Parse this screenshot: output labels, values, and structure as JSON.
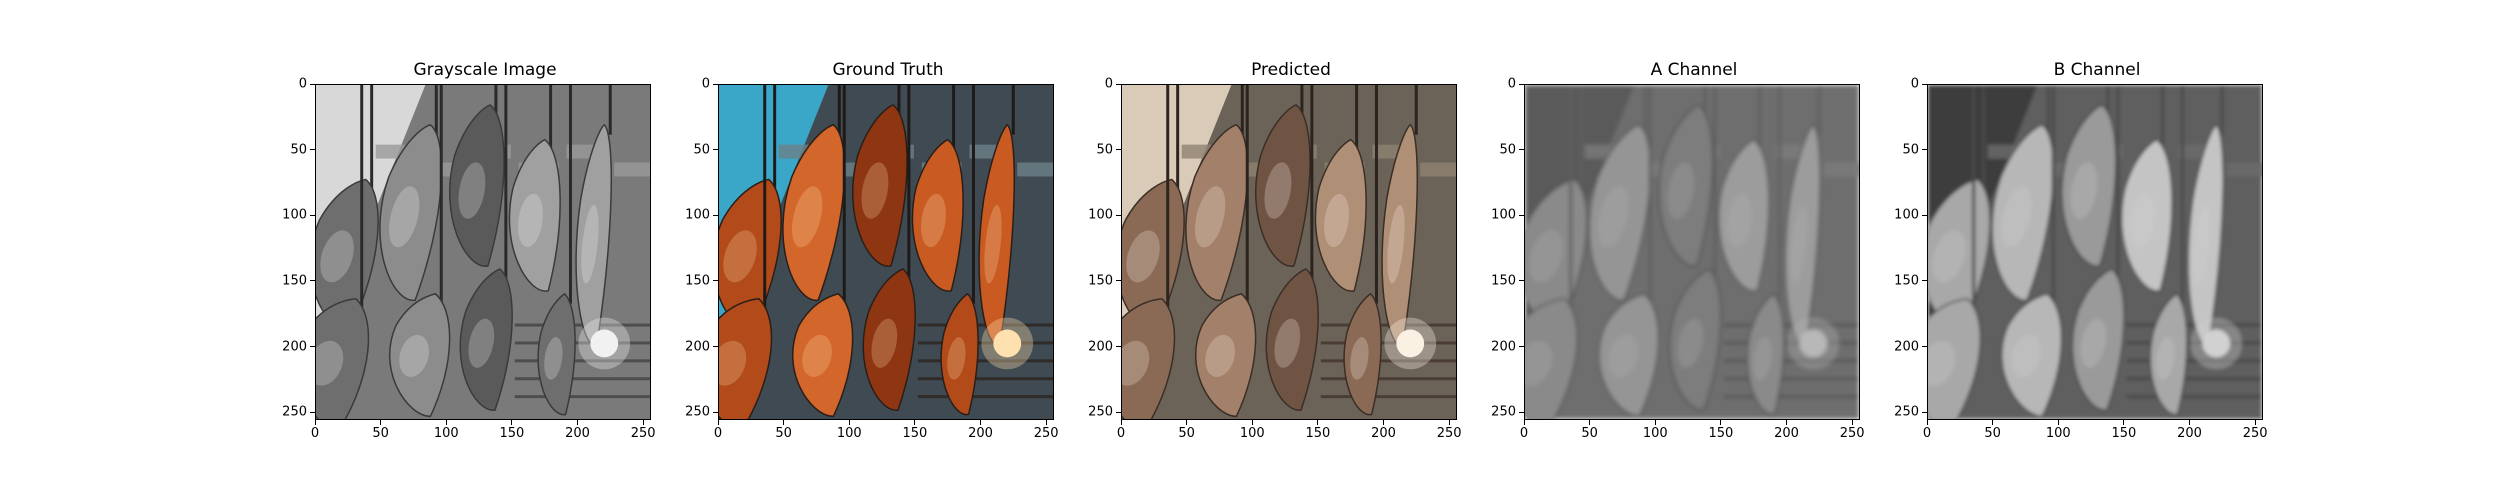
{
  "panels": [
    {
      "title": "Grayscale Image",
      "kind": "gray"
    },
    {
      "title": "Ground Truth",
      "kind": "color"
    },
    {
      "title": "Predicted",
      "kind": "pred"
    },
    {
      "title": "A Channel",
      "kind": "achan"
    },
    {
      "title": "B Channel",
      "kind": "bchan"
    }
  ],
  "ticks": {
    "x": [
      "0",
      "50",
      "100",
      "150",
      "200",
      "250"
    ],
    "y": [
      "0",
      "50",
      "100",
      "150",
      "200",
      "250"
    ],
    "range": [
      0,
      256
    ]
  }
}
